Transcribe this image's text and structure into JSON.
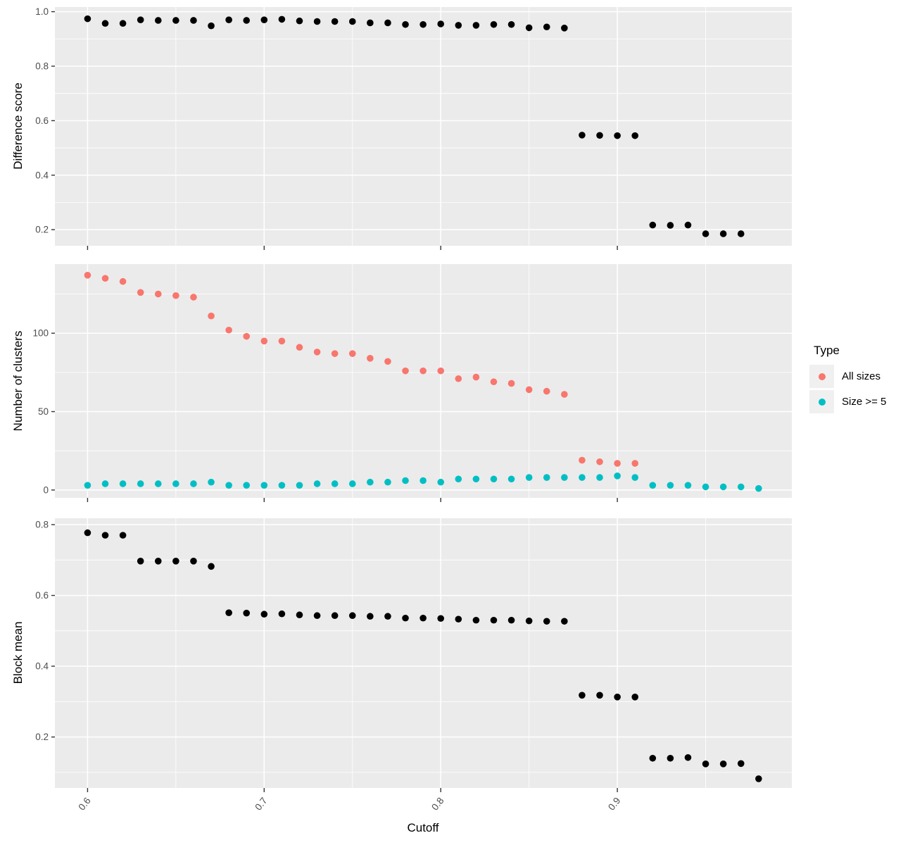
{
  "axis_x": {
    "title": "Cutoff",
    "ticks": [
      0.6,
      0.7,
      0.8,
      0.9
    ],
    "tick_labels": [
      "0.6",
      "0.7",
      "0.8",
      "0.9"
    ],
    "minor_ticks": [
      0.65,
      0.75,
      0.85,
      0.95
    ],
    "domain": [
      0.5815,
      0.9988
    ]
  },
  "legend": {
    "title": "Type",
    "items": [
      {
        "label": "All sizes",
        "color": "#F8766D"
      },
      {
        "label": "Size >= 5",
        "color": "#00BFC4"
      }
    ]
  },
  "colors": {
    "panel_bg": "#EBEBEB",
    "grid": "#FFFFFF",
    "tick_text": "#4D4D4D",
    "tick_mark": "#333333",
    "axis_title": "#000000",
    "legend_key_bg": "#F0F0F0"
  },
  "chart_data": [
    {
      "type": "scatter",
      "title": "",
      "xlabel": "Cutoff",
      "ylabel": "Difference score",
      "y_ticks": [
        0.2,
        0.4,
        0.6,
        0.8,
        1.0
      ],
      "y_tick_labels": [
        "0.2",
        "0.4",
        "0.6",
        "0.8",
        "1.0"
      ],
      "y_minor": [
        0.3,
        0.5,
        0.7,
        0.9
      ],
      "ylim": [
        0.141,
        1.017
      ],
      "grid": true,
      "series": [
        {
          "name": "Difference score",
          "color": "#000000",
          "x": [
            0.6,
            0.61,
            0.62,
            0.63,
            0.64,
            0.65,
            0.66,
            0.67,
            0.68,
            0.69,
            0.7,
            0.71,
            0.72,
            0.73,
            0.74,
            0.75,
            0.76,
            0.77,
            0.78,
            0.79,
            0.8,
            0.81,
            0.82,
            0.83,
            0.84,
            0.85,
            0.86,
            0.87,
            0.88,
            0.89,
            0.9,
            0.91,
            0.92,
            0.93,
            0.94,
            0.95,
            0.96,
            0.97
          ],
          "y": [
            0.974,
            0.957,
            0.957,
            0.97,
            0.968,
            0.968,
            0.968,
            0.948,
            0.97,
            0.968,
            0.97,
            0.972,
            0.966,
            0.964,
            0.964,
            0.964,
            0.959,
            0.959,
            0.953,
            0.953,
            0.955,
            0.95,
            0.95,
            0.953,
            0.953,
            0.941,
            0.944,
            0.94,
            0.547,
            0.546,
            0.545,
            0.545,
            0.217,
            0.216,
            0.217,
            0.185,
            0.185,
            0.185
          ]
        }
      ]
    },
    {
      "type": "scatter",
      "title": "",
      "xlabel": "Cutoff",
      "ylabel": "Number of clusters",
      "y_ticks": [
        0,
        50,
        100
      ],
      "y_tick_labels": [
        "0",
        "50",
        "100"
      ],
      "y_minor": [
        25,
        75,
        125
      ],
      "ylim": [
        -5.0,
        144.1
      ],
      "grid": true,
      "legend_title": "Type",
      "legend_position": "right",
      "series": [
        {
          "name": "All sizes",
          "color": "#F8766D",
          "x": [
            0.6,
            0.61,
            0.62,
            0.63,
            0.64,
            0.65,
            0.66,
            0.67,
            0.68,
            0.69,
            0.7,
            0.71,
            0.72,
            0.73,
            0.74,
            0.75,
            0.76,
            0.77,
            0.78,
            0.79,
            0.8,
            0.81,
            0.82,
            0.83,
            0.84,
            0.85,
            0.86,
            0.87,
            0.88,
            0.89,
            0.9,
            0.91
          ],
          "y": [
            137,
            135,
            133,
            126,
            125,
            124,
            123,
            111,
            102,
            98,
            95,
            95,
            91,
            88,
            87,
            87,
            84,
            82,
            76,
            76,
            76,
            71,
            72,
            69,
            68,
            64,
            63,
            61,
            19,
            18,
            17,
            17
          ]
        },
        {
          "name": "Size >= 5",
          "color": "#00BFC4",
          "x": [
            0.6,
            0.61,
            0.62,
            0.63,
            0.64,
            0.65,
            0.66,
            0.67,
            0.68,
            0.69,
            0.7,
            0.71,
            0.72,
            0.73,
            0.74,
            0.75,
            0.76,
            0.77,
            0.78,
            0.79,
            0.8,
            0.81,
            0.82,
            0.83,
            0.84,
            0.85,
            0.86,
            0.87,
            0.88,
            0.89,
            0.9,
            0.91,
            0.92,
            0.93,
            0.94,
            0.95,
            0.96,
            0.97,
            0.98
          ],
          "y": [
            3,
            4,
            4,
            4,
            4,
            4,
            4,
            5,
            3,
            3,
            3,
            3,
            3,
            4,
            4,
            4,
            5,
            5,
            6,
            6,
            5,
            7,
            7,
            7,
            7,
            8,
            8,
            8,
            8,
            8,
            9,
            8,
            3,
            3,
            3,
            2,
            2,
            2,
            1
          ]
        }
      ]
    },
    {
      "type": "scatter",
      "title": "",
      "xlabel": "Cutoff",
      "ylabel": "Block mean",
      "y_ticks": [
        0.2,
        0.4,
        0.6,
        0.8
      ],
      "y_tick_labels": [
        "0.2",
        "0.4",
        "0.6",
        "0.8"
      ],
      "y_minor": [
        0.1,
        0.3,
        0.5,
        0.7
      ],
      "ylim": [
        0.056,
        0.818
      ],
      "grid": true,
      "series": [
        {
          "name": "Block mean",
          "color": "#000000",
          "x": [
            0.6,
            0.61,
            0.62,
            0.63,
            0.64,
            0.65,
            0.66,
            0.67,
            0.68,
            0.69,
            0.7,
            0.71,
            0.72,
            0.73,
            0.74,
            0.75,
            0.76,
            0.77,
            0.78,
            0.79,
            0.8,
            0.81,
            0.82,
            0.83,
            0.84,
            0.85,
            0.86,
            0.87,
            0.88,
            0.89,
            0.9,
            0.91,
            0.92,
            0.93,
            0.94,
            0.95,
            0.96,
            0.97,
            0.98
          ],
          "y": [
            0.777,
            0.77,
            0.77,
            0.697,
            0.697,
            0.697,
            0.697,
            0.682,
            0.551,
            0.55,
            0.547,
            0.548,
            0.545,
            0.543,
            0.543,
            0.543,
            0.541,
            0.541,
            0.536,
            0.536,
            0.535,
            0.533,
            0.53,
            0.53,
            0.53,
            0.528,
            0.527,
            0.527,
            0.318,
            0.318,
            0.313,
            0.313,
            0.14,
            0.14,
            0.142,
            0.124,
            0.124,
            0.125,
            0.082
          ]
        }
      ]
    }
  ]
}
